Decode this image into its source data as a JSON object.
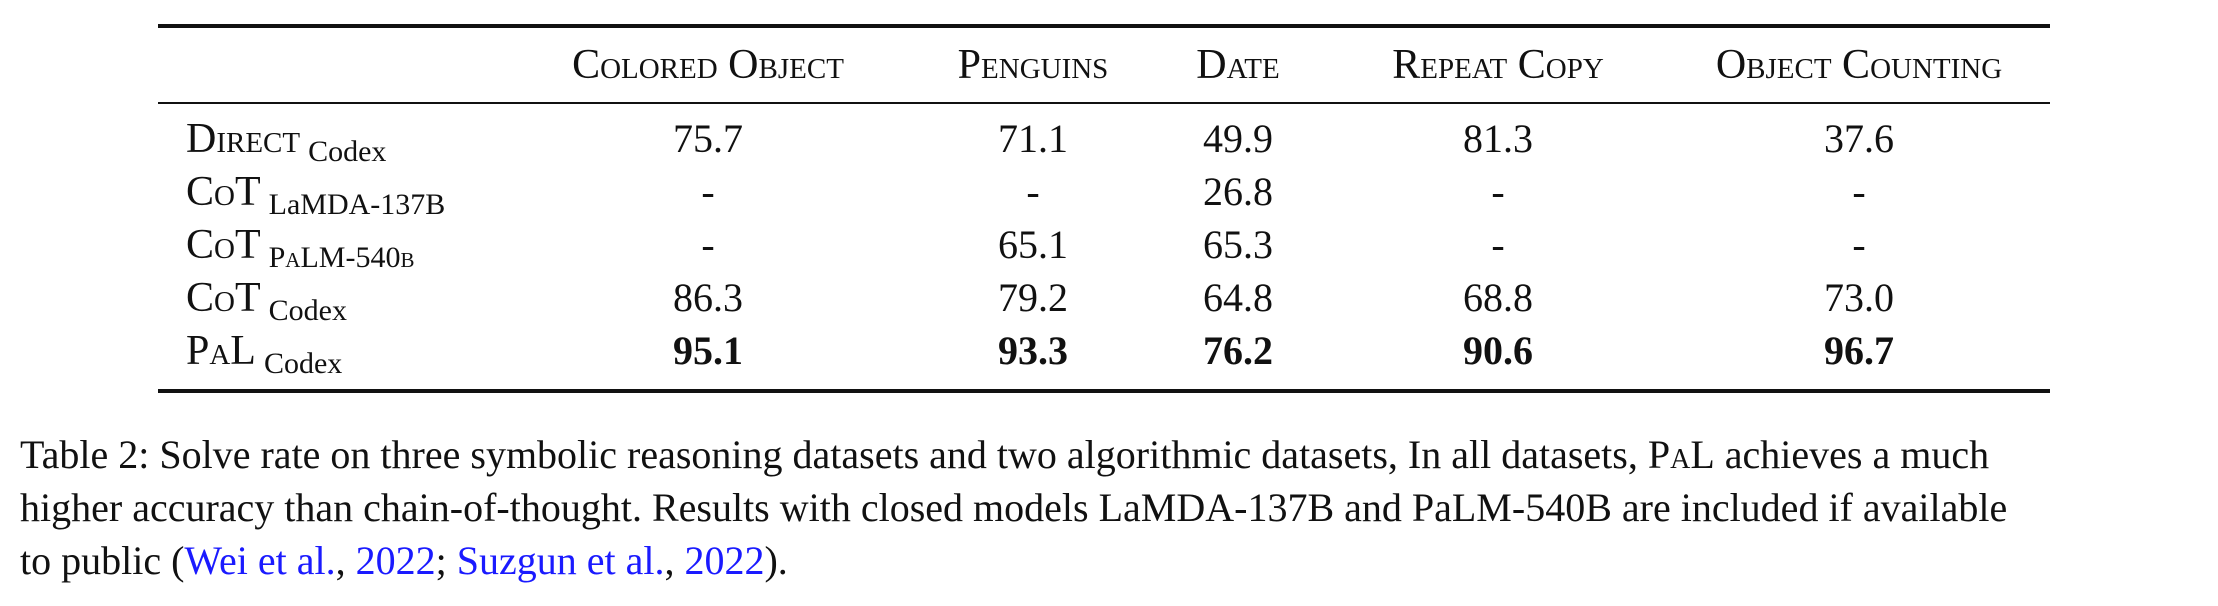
{
  "table": {
    "headers": [
      "",
      "Colored Object",
      "Penguins",
      "Date",
      "Repeat Copy",
      "Object Counting"
    ],
    "rows": [
      {
        "method": "Direct",
        "sub": "Codex",
        "sub_small_caps": false,
        "values": [
          "75.7",
          "71.1",
          "49.9",
          "81.3",
          "37.6"
        ],
        "bold": false
      },
      {
        "method": "CoT",
        "sub": "LaMDA-137B",
        "sub_small_caps": false,
        "values": [
          "-",
          "-",
          "26.8",
          "-",
          "-"
        ],
        "bold": false
      },
      {
        "method": "CoT",
        "sub": "PaLM-540b",
        "sub_small_caps": true,
        "values": [
          "-",
          "65.1",
          "65.3",
          "-",
          "-"
        ],
        "bold": false
      },
      {
        "method": "CoT",
        "sub": "Codex",
        "sub_small_caps": false,
        "values": [
          "86.3",
          "79.2",
          "64.8",
          "68.8",
          "73.0"
        ],
        "bold": false
      },
      {
        "method": "PaL",
        "sub": "Codex",
        "sub_small_caps": false,
        "values": [
          "95.1",
          "93.3",
          "76.2",
          "90.6",
          "96.7"
        ],
        "bold": true
      }
    ]
  },
  "caption": {
    "line1_a": "Table 2: Solve rate on three symbolic reasoning datasets and two algorithmic datasets, In all datasets, ",
    "line1_pal": "PaL",
    "line1_b": " achieves a much",
    "line2": "higher accuracy than chain-of-thought. Results with closed models LaMDA-137B and PaLM-540B are included if available",
    "line3_a": "to public (",
    "cite1_author": "Wei et al.",
    "sep1": ", ",
    "cite1_year": "2022",
    "sep2": "; ",
    "cite2_author": "Suzgun et al.",
    "sep3": ", ",
    "cite2_year": "2022",
    "line3_end": ")."
  },
  "colors": {
    "link": "#1a1aff",
    "text": "#111111"
  }
}
